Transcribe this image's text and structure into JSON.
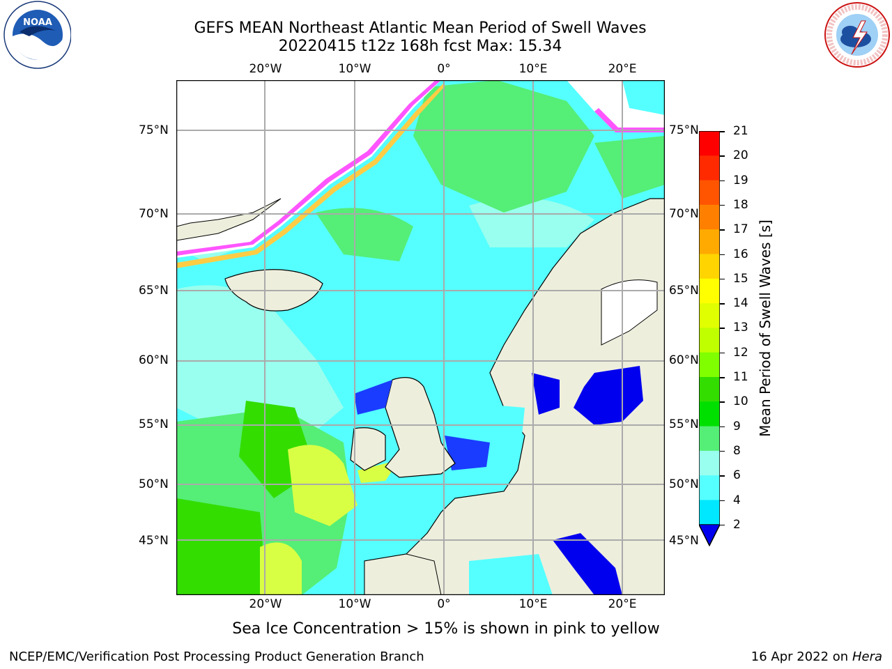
{
  "title": {
    "line1": "GEFS MEAN Northeast Atlantic Mean Period of Swell Waves",
    "line2": "20220415 t12z 168h fcst   Max: 15.34"
  },
  "logos": {
    "left": "NOAA",
    "right": "NATIONAL WEATHER SERVICE"
  },
  "map": {
    "lon_labels": [
      "20°W",
      "10°W",
      "0°",
      "10°E",
      "20°E"
    ],
    "lat_labels": [
      "75°N",
      "70°N",
      "65°N",
      "60°N",
      "55°N",
      "50°N",
      "45°N"
    ],
    "ice_note": "Sea Ice Concentration > 15% is shown in pink to yellow"
  },
  "colorbar": {
    "label": "Mean Period of Swell Waves [s]",
    "ticks": [
      "21",
      "20",
      "19",
      "18",
      "17",
      "16",
      "15",
      "14",
      "13",
      "12",
      "11",
      "10",
      "9",
      "8",
      "6",
      "4",
      "2"
    ],
    "colors": [
      "#ff0000",
      "#ff2a00",
      "#ff5500",
      "#ff8000",
      "#ffaa00",
      "#ffd400",
      "#ffff00",
      "#e0ff00",
      "#c0ff00",
      "#80ff00",
      "#33dd00",
      "#00e000",
      "#55ee77",
      "#99ffee",
      "#55ffff",
      "#00e8ff",
      "#0080ff",
      "#0000ee"
    ]
  },
  "footer": {
    "left": "NCEP/EMC/Verification Post Processing Product Generation Branch",
    "right_date": "16 Apr 2022 on ",
    "right_host": "Hera"
  }
}
